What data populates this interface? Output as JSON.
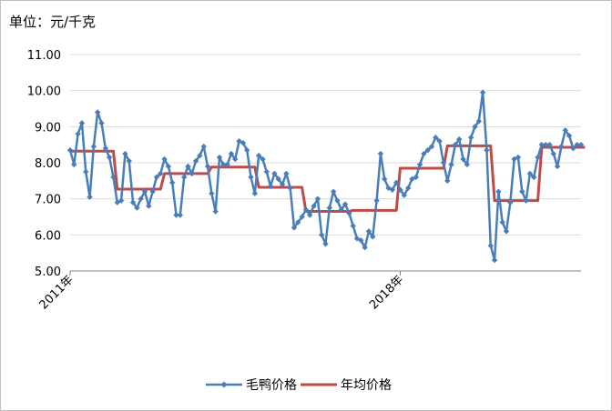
{
  "unit_label": "单位：元/千克",
  "colors": {
    "series_price": "#4a7ebb",
    "series_avg": "#be4b48",
    "grid": "#d9d9d9",
    "axis": "#868686"
  },
  "chart_data": {
    "type": "line",
    "title": "",
    "xlabel": "",
    "ylabel": "",
    "ylim": [
      5.0,
      11.0
    ],
    "yticks": [
      "5.00",
      "6.00",
      "7.00",
      "8.00",
      "9.00",
      "10.00",
      "11.00"
    ],
    "xtick_labels": [
      {
        "label": "2011年",
        "index": 0
      },
      {
        "label": "2018年",
        "index": 84
      }
    ],
    "grid": "horizontal",
    "legend": "bottom-center",
    "series": [
      {
        "name": "毛鸭价格",
        "values": [
          8.35,
          7.95,
          8.8,
          9.1,
          7.75,
          7.05,
          8.45,
          9.4,
          9.1,
          8.4,
          8.15,
          7.6,
          6.9,
          6.95,
          8.25,
          8.05,
          6.9,
          6.75,
          7.0,
          7.2,
          6.8,
          7.2,
          7.6,
          7.7,
          8.1,
          7.9,
          7.45,
          6.55,
          6.55,
          7.6,
          7.9,
          7.7,
          8.05,
          8.2,
          8.45,
          7.9,
          7.15,
          6.65,
          8.15,
          7.95,
          7.95,
          8.25,
          8.1,
          8.6,
          8.55,
          8.35,
          7.6,
          7.15,
          8.2,
          8.1,
          7.75,
          7.35,
          7.7,
          7.55,
          7.4,
          7.7,
          7.3,
          6.2,
          6.35,
          6.5,
          6.7,
          6.55,
          6.8,
          7.0,
          6.0,
          5.75,
          6.75,
          7.2,
          6.95,
          6.7,
          6.85,
          6.6,
          6.25,
          5.9,
          5.85,
          5.65,
          6.1,
          5.95,
          6.95,
          8.25,
          7.55,
          7.3,
          7.25,
          7.45,
          7.25,
          7.1,
          7.3,
          7.55,
          7.6,
          7.95,
          8.25,
          8.35,
          8.45,
          8.7,
          8.6,
          8.0,
          7.5,
          7.95,
          8.5,
          8.65,
          8.1,
          7.95,
          8.7,
          9.0,
          9.15,
          9.95,
          8.35,
          5.7,
          5.3,
          7.2,
          6.35,
          6.1,
          6.9,
          8.1,
          8.15,
          7.2,
          6.95,
          7.7,
          7.6,
          8.15,
          8.5,
          8.5,
          8.5,
          8.25,
          7.9,
          8.45,
          8.9,
          8.75,
          8.4,
          8.5,
          8.5
        ]
      },
      {
        "name": "年均价格",
        "values": [
          8.32,
          8.32,
          8.32,
          8.32,
          8.32,
          8.32,
          8.32,
          8.32,
          8.32,
          8.32,
          8.32,
          8.32,
          7.27,
          7.27,
          7.27,
          7.27,
          7.27,
          7.27,
          7.27,
          7.27,
          7.27,
          7.27,
          7.27,
          7.27,
          7.7,
          7.7,
          7.7,
          7.7,
          7.7,
          7.7,
          7.7,
          7.7,
          7.7,
          7.7,
          7.7,
          7.7,
          7.88,
          7.88,
          7.88,
          7.88,
          7.88,
          7.88,
          7.88,
          7.88,
          7.88,
          7.88,
          7.88,
          7.88,
          7.32,
          7.32,
          7.32,
          7.32,
          7.32,
          7.32,
          7.32,
          7.32,
          7.32,
          7.32,
          7.32,
          7.32,
          6.65,
          6.65,
          6.65,
          6.65,
          6.65,
          6.65,
          6.65,
          6.65,
          6.65,
          6.65,
          6.65,
          6.65,
          6.68,
          6.68,
          6.68,
          6.68,
          6.68,
          6.68,
          6.68,
          6.68,
          6.68,
          6.68,
          6.68,
          6.68,
          7.85,
          7.85,
          7.85,
          7.85,
          7.85,
          7.85,
          7.85,
          7.85,
          7.85,
          7.85,
          7.85,
          7.85,
          8.47,
          8.47,
          8.47,
          8.47,
          8.47,
          8.47,
          8.47,
          8.47,
          8.47,
          8.47,
          8.47,
          8.47,
          6.95,
          6.95,
          6.95,
          6.95,
          6.95,
          6.95,
          6.95,
          6.95,
          6.95,
          6.95,
          6.95,
          6.95,
          8.43,
          8.43,
          8.43,
          8.43,
          8.43,
          8.43,
          8.43,
          8.43,
          8.43,
          8.43,
          8.43,
          8.43
        ]
      }
    ]
  }
}
